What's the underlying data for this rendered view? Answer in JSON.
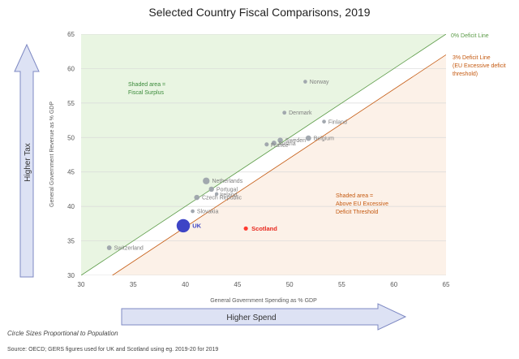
{
  "chart_data": {
    "type": "scatter",
    "title": "Selected Country Fiscal Comparisons, 2019",
    "xlabel": "General Government Spending as % GDP",
    "ylabel": "General Government Revenue as % GDP",
    "xlim": [
      30,
      65
    ],
    "ylim": [
      30,
      65
    ],
    "xticks": [
      "30",
      "35",
      "40",
      "45",
      "50",
      "55",
      "60",
      "65"
    ],
    "yticks": [
      "30",
      "35",
      "40",
      "45",
      "50",
      "55",
      "60",
      "65"
    ],
    "points": [
      {
        "label": "Norway",
        "x": 51.5,
        "y": 58.1,
        "size": 5.4,
        "highlight": "none"
      },
      {
        "label": "Denmark",
        "x": 49.5,
        "y": 53.6,
        "size": 5.8,
        "highlight": "none"
      },
      {
        "label": "Finland",
        "x": 53.3,
        "y": 52.3,
        "size": 5.5,
        "highlight": "none"
      },
      {
        "label": "Belgium",
        "x": 51.8,
        "y": 49.9,
        "size": 11.5,
        "highlight": "none"
      },
      {
        "label": "Sweden",
        "x": 49.1,
        "y": 49.6,
        "size": 10.3,
        "highlight": "none"
      },
      {
        "label": "Austria",
        "x": 48.5,
        "y": 49.2,
        "size": 8.9,
        "highlight": "none"
      },
      {
        "label": "France",
        "x": 47.8,
        "y": 49.0,
        "size": 6.5,
        "highlight": "none"
      },
      {
        "label": "Netherlands",
        "x": 42.0,
        "y": 43.7,
        "size": 17.3,
        "highlight": "none"
      },
      {
        "label": "Portugal",
        "x": 42.5,
        "y": 42.5,
        "size": 10.3,
        "highlight": "none"
      },
      {
        "label": "Ireland",
        "x": 43.0,
        "y": 41.8,
        "size": 4.9,
        "highlight": "none"
      },
      {
        "label": "Czech Republic",
        "x": 41.1,
        "y": 41.3,
        "size": 10.6,
        "highlight": "none"
      },
      {
        "label": "Slovakia",
        "x": 40.7,
        "y": 39.3,
        "size": 5.4,
        "highlight": "none"
      },
      {
        "label": "UK",
        "x": 39.8,
        "y": 37.2,
        "size": 66.8,
        "highlight": "uk"
      },
      {
        "label": "Scotland",
        "x": 45.8,
        "y": 36.8,
        "size": 5.5,
        "highlight": "scotland"
      },
      {
        "label": "Switzerland",
        "x": 32.7,
        "y": 34.0,
        "size": 8.5,
        "highlight": "none"
      }
    ],
    "reference_lines": [
      {
        "label": "0% Deficit Line",
        "label2": "",
        "label3": "",
        "offset": 0,
        "color": "#5a9a46"
      },
      {
        "label": "3% Deficit Line",
        "label2": "(EU Excessive deficit",
        "label3": "threshold)",
        "offset": 3,
        "color": "#c55a11"
      }
    ],
    "regions": [
      {
        "name": "surplus",
        "line1": "Shaded area =",
        "line2": "Fiscal Surplus",
        "line3": "",
        "color": "#3a8a3a",
        "fill": "#e9f5e2"
      },
      {
        "name": "excessive",
        "line1": "Shaded area =",
        "line2": "Above EU Excessive",
        "line3": "Deficit Threshold",
        "color": "#c55a11",
        "fill": "#fcf1e8"
      }
    ],
    "arrows": {
      "vertical": "Higher Tax",
      "horizontal": "Higher Spend"
    },
    "notes": {
      "sizes": "Circle Sizes Proportional to Population",
      "source": "Source: OECD; GERS figures used for UK and Scotland using eg. 2019-20 for 2019"
    },
    "colors": {
      "point": "#9da3ab",
      "uk": "#3e45c6",
      "uk_label": "#3e45c6",
      "scotland": "#ff3b30",
      "scotland_label": "#e8281e",
      "arrow_fill": "#dde2f4",
      "arrow_stroke": "#7e89c3",
      "grid": "#d9d9d9",
      "axis_text": "#595959",
      "label_text": "#7f7f7f"
    }
  }
}
